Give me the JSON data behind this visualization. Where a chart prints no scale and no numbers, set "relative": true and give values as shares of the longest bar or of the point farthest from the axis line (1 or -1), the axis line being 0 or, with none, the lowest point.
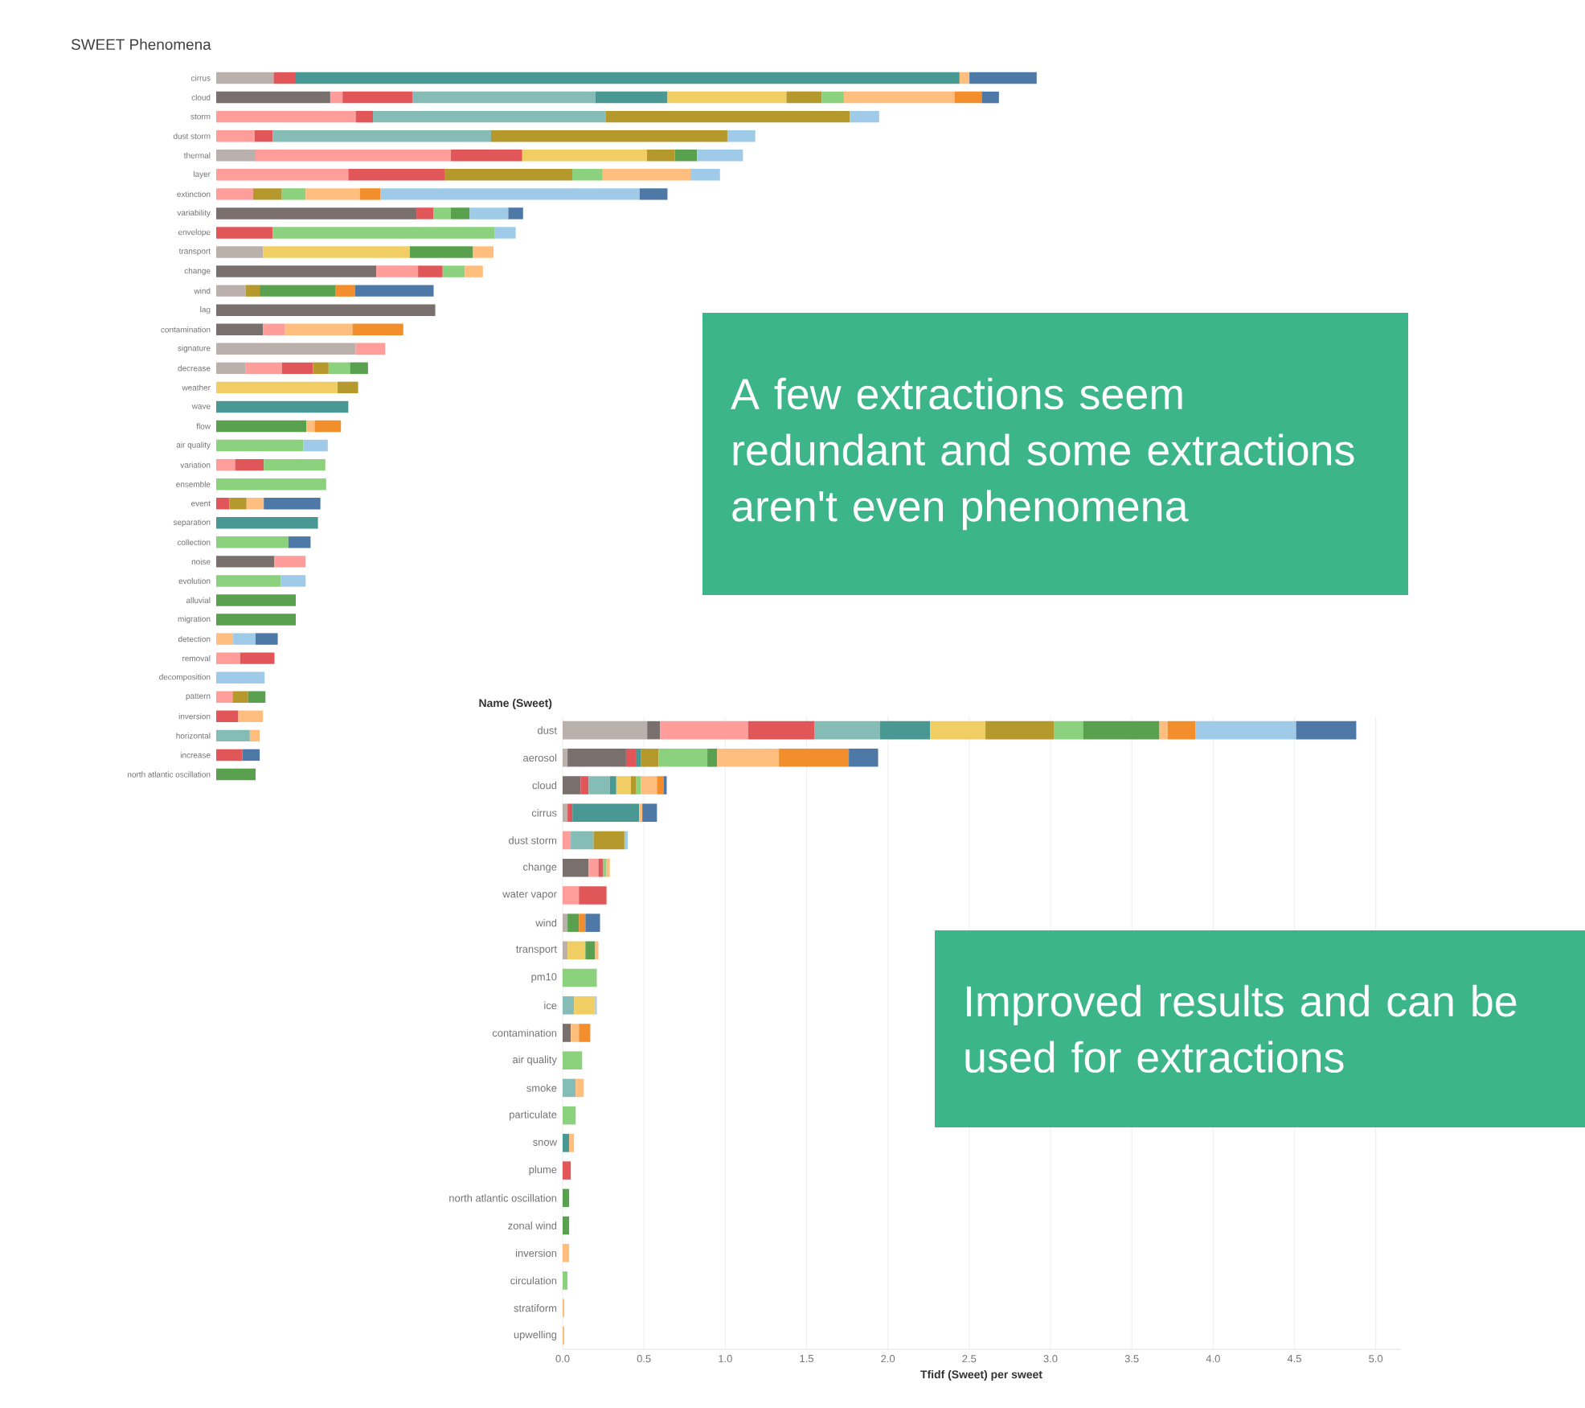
{
  "chart_data": [
    {
      "type": "bar",
      "orientation": "horizontal",
      "stacked": true,
      "relative": true,
      "title": "SWEET Phenomena",
      "categories": [
        "cirrus",
        "cloud",
        "storm",
        "dust storm",
        "thermal",
        "layer",
        "extinction",
        "variability",
        "envelope",
        "transport",
        "change",
        "wind",
        "lag",
        "contamination",
        "signature",
        "decrease",
        "weather",
        "wave",
        "flow",
        "air quality",
        "variation",
        "ensemble",
        "event",
        "separation",
        "collection",
        "noise",
        "evolution",
        "alluvial",
        "migration",
        "detection",
        "removal",
        "decomposition",
        "pattern",
        "inversion",
        "horizontal",
        "increase",
        "north atlantic oscillation"
      ],
      "series": [
        {
          "color": "#bab0ac",
          "values": [
            0.07,
            null,
            null,
            null,
            0.048,
            null,
            null,
            null,
            null,
            0.057,
            null,
            0.036,
            null,
            null,
            0.17,
            0.036,
            null,
            null,
            null,
            null,
            null,
            null,
            null,
            null,
            null,
            null,
            null,
            null,
            null,
            null,
            null,
            null,
            null,
            null,
            null,
            null,
            null
          ]
        },
        {
          "color": "#79706e",
          "values": [
            null,
            0.139,
            null,
            null,
            null,
            null,
            null,
            0.244,
            null,
            null,
            0.195,
            null,
            0.267,
            0.057,
            null,
            null,
            null,
            null,
            null,
            null,
            null,
            null,
            null,
            null,
            null,
            0.071,
            null,
            null,
            null,
            null,
            null,
            null,
            null,
            null,
            null,
            null,
            null
          ]
        },
        {
          "color": "#ff9d9a",
          "values": [
            null,
            0.015,
            0.17,
            0.047,
            0.238,
            0.161,
            0.045,
            null,
            null,
            null,
            0.051,
            null,
            null,
            0.027,
            0.036,
            0.044,
            null,
            null,
            null,
            null,
            0.023,
            null,
            null,
            null,
            null,
            0.038,
            null,
            null,
            null,
            null,
            0.029,
            null,
            0.02,
            null,
            null,
            null,
            null
          ]
        },
        {
          "color": "#e15759",
          "values": [
            0.026,
            0.085,
            0.021,
            0.022,
            0.087,
            0.118,
            null,
            0.021,
            0.069,
            null,
            0.03,
            null,
            null,
            null,
            null,
            0.038,
            null,
            null,
            null,
            null,
            0.035,
            null,
            0.016,
            null,
            null,
            null,
            null,
            null,
            null,
            null,
            0.042,
            null,
            null,
            0.027,
            null,
            0.032,
            null
          ]
        },
        {
          "color": "#86bcb6",
          "values": [
            null,
            0.223,
            0.284,
            0.266,
            null,
            null,
            null,
            null,
            null,
            null,
            null,
            null,
            null,
            null,
            null,
            null,
            null,
            null,
            null,
            null,
            null,
            null,
            null,
            null,
            null,
            null,
            null,
            null,
            null,
            null,
            null,
            null,
            null,
            null,
            0.041,
            null,
            null
          ]
        },
        {
          "color": "#499894",
          "values": [
            0.81,
            0.088,
            null,
            null,
            null,
            null,
            null,
            null,
            null,
            null,
            null,
            null,
            null,
            null,
            null,
            null,
            null,
            0.161,
            null,
            null,
            null,
            null,
            null,
            0.124,
            null,
            null,
            null,
            null,
            null,
            null,
            null,
            null,
            null,
            null,
            null,
            null,
            null
          ]
        },
        {
          "color": "#f1ce63",
          "values": [
            null,
            0.145,
            null,
            null,
            0.152,
            null,
            null,
            null,
            null,
            0.179,
            null,
            null,
            null,
            null,
            null,
            null,
            0.148,
            null,
            null,
            null,
            null,
            null,
            null,
            null,
            null,
            null,
            null,
            null,
            null,
            null,
            null,
            null,
            null,
            null,
            null,
            null,
            null
          ]
        },
        {
          "color": "#b6992d",
          "values": [
            null,
            0.043,
            0.297,
            0.288,
            0.034,
            0.155,
            0.035,
            null,
            null,
            null,
            null,
            0.017,
            null,
            null,
            null,
            0.019,
            0.025,
            null,
            null,
            null,
            null,
            null,
            0.021,
            null,
            null,
            null,
            null,
            null,
            null,
            null,
            null,
            null,
            0.019,
            null,
            null,
            null,
            null
          ]
        },
        {
          "color": "#8cd17d",
          "values": [
            null,
            0.027,
            null,
            null,
            null,
            0.037,
            0.029,
            0.021,
            0.27,
            null,
            0.027,
            null,
            null,
            null,
            null,
            0.026,
            null,
            null,
            null,
            0.106,
            0.075,
            0.134,
            null,
            null,
            0.088,
            null,
            0.079,
            null,
            null,
            null,
            null,
            null,
            null,
            null,
            null,
            null,
            null
          ]
        },
        {
          "color": "#59a14f",
          "values": [
            null,
            null,
            null,
            null,
            0.027,
            null,
            null,
            0.023,
            null,
            0.077,
            null,
            0.092,
            null,
            null,
            null,
            0.022,
            null,
            null,
            0.11,
            null,
            null,
            null,
            null,
            null,
            null,
            null,
            null,
            0.097,
            0.097,
            null,
            null,
            null,
            0.021,
            null,
            null,
            null,
            0.048
          ]
        },
        {
          "color": "#ffbe7d",
          "values": [
            0.012,
            0.135,
            null,
            null,
            null,
            0.107,
            0.066,
            null,
            null,
            0.025,
            0.022,
            null,
            null,
            0.082,
            null,
            null,
            null,
            null,
            0.01,
            null,
            null,
            null,
            0.021,
            null,
            null,
            null,
            null,
            null,
            null,
            0.02,
            null,
            null,
            null,
            0.03,
            0.012,
            null,
            null
          ]
        },
        {
          "color": "#f28e2b",
          "values": [
            null,
            0.033,
            null,
            null,
            null,
            null,
            0.025,
            null,
            null,
            null,
            null,
            0.024,
            null,
            0.062,
            null,
            null,
            null,
            null,
            0.032,
            null,
            null,
            null,
            null,
            null,
            null,
            null,
            null,
            null,
            null,
            null,
            null,
            null,
            null,
            null,
            null,
            null,
            null
          ]
        },
        {
          "color": "#a0cbe8",
          "values": [
            null,
            null,
            0.036,
            0.034,
            0.056,
            0.036,
            0.316,
            0.047,
            0.026,
            null,
            null,
            null,
            null,
            null,
            null,
            null,
            null,
            null,
            null,
            0.03,
            null,
            null,
            null,
            null,
            null,
            null,
            0.03,
            null,
            null,
            0.028,
            null,
            0.059,
            null,
            null,
            null,
            null,
            null
          ]
        },
        {
          "color": "#4e79a7",
          "values": [
            0.082,
            0.021,
            null,
            null,
            null,
            null,
            0.034,
            0.018,
            null,
            null,
            null,
            0.096,
            null,
            null,
            null,
            null,
            null,
            null,
            null,
            null,
            null,
            null,
            0.069,
            null,
            0.027,
            null,
            null,
            null,
            null,
            0.027,
            null,
            null,
            null,
            null,
            null,
            0.021,
            null
          ]
        }
      ],
      "annotations": [
        "A few extractions seem redundant and some extractions aren't even phenomena"
      ]
    },
    {
      "type": "bar",
      "orientation": "horizontal",
      "stacked": true,
      "ylabel": "Name (Sweet)",
      "xlabel": "Tfidf (Sweet) per sweet",
      "grid": "x",
      "categories": [
        "dust",
        "aerosol",
        "cloud",
        "cirrus",
        "dust storm",
        "change",
        "water vapor",
        "wind",
        "transport",
        "pm10",
        "ice",
        "contamination",
        "air quality",
        "smoke",
        "particulate",
        "snow",
        "plume",
        "north atlantic oscillation",
        "zonal wind",
        "inversion",
        "circulation",
        "stratiform",
        "upwelling"
      ],
      "xlim": [
        0,
        5.15
      ],
      "xticks": [
        {
          "value": 0,
          "label": "0.0"
        },
        {
          "value": 0.5,
          "label": "0.5"
        },
        {
          "value": 1,
          "label": "1.0"
        },
        {
          "value": 1.5,
          "label": "1.5"
        },
        {
          "value": 2,
          "label": "2.0"
        },
        {
          "value": 2.5,
          "label": "2.5"
        },
        {
          "value": 3,
          "label": "3.0"
        },
        {
          "value": 3.5,
          "label": "3.5"
        },
        {
          "value": 4,
          "label": "4.0"
        },
        {
          "value": 4.5,
          "label": "4.5"
        },
        {
          "value": 5,
          "label": "5.0"
        }
      ],
      "series": [
        {
          "color": "#bab0ac",
          "values": [
            0.52,
            0.03,
            null,
            0.03,
            null,
            null,
            null,
            0.03,
            0.03,
            null,
            null,
            null,
            null,
            null,
            null,
            null,
            null,
            null,
            null,
            null,
            null,
            null,
            null
          ]
        },
        {
          "color": "#79706e",
          "values": [
            0.08,
            0.36,
            0.11,
            null,
            null,
            0.16,
            null,
            null,
            null,
            null,
            null,
            0.05,
            null,
            null,
            null,
            null,
            null,
            null,
            null,
            null,
            null,
            null,
            null
          ]
        },
        {
          "color": "#ff9d9a",
          "values": [
            0.54,
            null,
            null,
            null,
            0.05,
            0.06,
            0.1,
            null,
            null,
            null,
            null,
            null,
            null,
            null,
            null,
            null,
            null,
            null,
            null,
            null,
            null,
            null,
            null
          ]
        },
        {
          "color": "#e15759",
          "values": [
            0.41,
            0.06,
            0.05,
            0.03,
            null,
            0.03,
            0.17,
            null,
            null,
            null,
            null,
            null,
            null,
            null,
            null,
            null,
            0.05,
            null,
            null,
            null,
            null,
            null,
            null
          ]
        },
        {
          "color": "#86bcb6",
          "values": [
            0.4,
            null,
            0.13,
            null,
            0.14,
            null,
            null,
            null,
            null,
            null,
            0.07,
            null,
            null,
            0.08,
            null,
            null,
            null,
            null,
            null,
            null,
            null,
            null,
            null
          ]
        },
        {
          "color": "#499894",
          "values": [
            0.31,
            0.03,
            0.04,
            0.41,
            null,
            null,
            null,
            null,
            null,
            null,
            null,
            null,
            null,
            null,
            null,
            0.04,
            null,
            null,
            null,
            null,
            null,
            null,
            null
          ]
        },
        {
          "color": "#f1ce63",
          "values": [
            0.34,
            null,
            0.09,
            null,
            null,
            null,
            null,
            null,
            0.11,
            null,
            0.13,
            null,
            null,
            null,
            null,
            null,
            null,
            null,
            null,
            null,
            null,
            null,
            null
          ]
        },
        {
          "color": "#b6992d",
          "values": [
            0.42,
            0.11,
            0.03,
            null,
            0.19,
            null,
            null,
            null,
            null,
            null,
            null,
            null,
            null,
            null,
            null,
            null,
            null,
            null,
            null,
            null,
            null,
            null,
            null
          ]
        },
        {
          "color": "#8cd17d",
          "values": [
            0.18,
            0.3,
            0.03,
            null,
            null,
            0.02,
            null,
            null,
            null,
            0.21,
            null,
            null,
            0.12,
            null,
            0.08,
            null,
            null,
            null,
            null,
            null,
            0.03,
            null,
            null
          ]
        },
        {
          "color": "#59a14f",
          "values": [
            0.47,
            0.06,
            null,
            null,
            null,
            null,
            null,
            0.07,
            0.06,
            null,
            null,
            null,
            null,
            null,
            null,
            null,
            null,
            0.04,
            0.04,
            null,
            null,
            null,
            null
          ]
        },
        {
          "color": "#ffbe7d",
          "values": [
            0.05,
            0.38,
            0.1,
            0.02,
            null,
            0.02,
            null,
            null,
            0.02,
            null,
            null,
            0.05,
            null,
            0.05,
            null,
            0.03,
            null,
            null,
            null,
            0.04,
            null,
            0.01,
            0.01
          ]
        },
        {
          "color": "#f28e2b",
          "values": [
            0.17,
            0.43,
            0.04,
            null,
            null,
            null,
            null,
            0.04,
            null,
            null,
            null,
            0.07,
            null,
            null,
            null,
            null,
            null,
            null,
            null,
            null,
            null,
            null,
            null
          ]
        },
        {
          "color": "#a0cbe8",
          "values": [
            0.62,
            null,
            null,
            null,
            0.02,
            null,
            null,
            null,
            null,
            null,
            0.01,
            null,
            null,
            null,
            null,
            null,
            null,
            null,
            null,
            null,
            null,
            null,
            null
          ]
        },
        {
          "color": "#4e79a7",
          "values": [
            0.37,
            0.18,
            0.02,
            0.09,
            null,
            null,
            null,
            0.09,
            null,
            null,
            null,
            null,
            null,
            null,
            null,
            null,
            null,
            null,
            null,
            null,
            null,
            null,
            null
          ]
        }
      ],
      "annotations": [
        "Improved results and can be used for extractions"
      ]
    }
  ]
}
